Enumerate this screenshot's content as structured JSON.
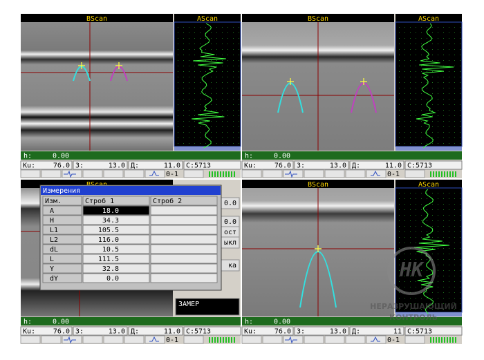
{
  "panels": [
    {
      "bscan": "BScan",
      "ascan": "AScan",
      "h_label": "h:",
      "h": "0.00",
      "ku_label": "Ku:",
      "ku": "76.0",
      "z_label": "З:",
      "z": "13.0",
      "d_label": "Д:",
      "d": "11.0",
      "c_label": "С:",
      "c": "5713",
      "range": "0-1"
    },
    {
      "bscan": "BScan",
      "ascan": "AScan",
      "h_label": "h:",
      "h": "0.00",
      "ku_label": "Ku:",
      "ku": "76.0",
      "z_label": "З:",
      "z": "13.0",
      "d_label": "Д:",
      "d": "11.0",
      "c_label": "С:",
      "c": "5713",
      "range": "0-1"
    },
    {
      "bscan": "BScan",
      "h_label": "h:",
      "h": "0.00",
      "ku_label": "Ku:",
      "ku": "76.0",
      "z_label": "З:",
      "z": "13.0",
      "d_label": "Д:",
      "d": "11.0",
      "c_label": "С:",
      "c": "5713",
      "range": "0-1"
    },
    {
      "bscan": "BScan",
      "ascan": "AScan",
      "h_label": "h:",
      "h": "0.00",
      "ku_label": "Ku:",
      "ku": "76.0",
      "z_label": "З:",
      "z": "13.0",
      "d_label": "Д:",
      "d": "11",
      "c_label": "С:",
      "c": "5713",
      "range": "0-1"
    }
  ],
  "menu": {
    "items": [
      "0.0",
      "0.0",
      "ост",
      "ыкл",
      "ка"
    ],
    "button": "ЗАМЕР"
  },
  "dialog": {
    "title": "Измерения",
    "header": [
      "Изм.",
      "Строб 1",
      "Строб 2"
    ],
    "rows": [
      [
        "A",
        "18.0",
        ""
      ],
      [
        "H",
        "34.3",
        ""
      ],
      [
        "L1",
        "105.5",
        ""
      ],
      [
        "L2",
        "116.0",
        ""
      ],
      [
        "dL",
        "10.5",
        ""
      ],
      [
        "L",
        "111.5",
        ""
      ],
      [
        "Y",
        "32.8",
        ""
      ],
      [
        "dY",
        "0.0",
        ""
      ]
    ]
  },
  "watermark": {
    "logo": "НК",
    "line1": "НЕРАЗРУШАЮЩИЙ",
    "line2": "КОНТРОЛЬ"
  }
}
